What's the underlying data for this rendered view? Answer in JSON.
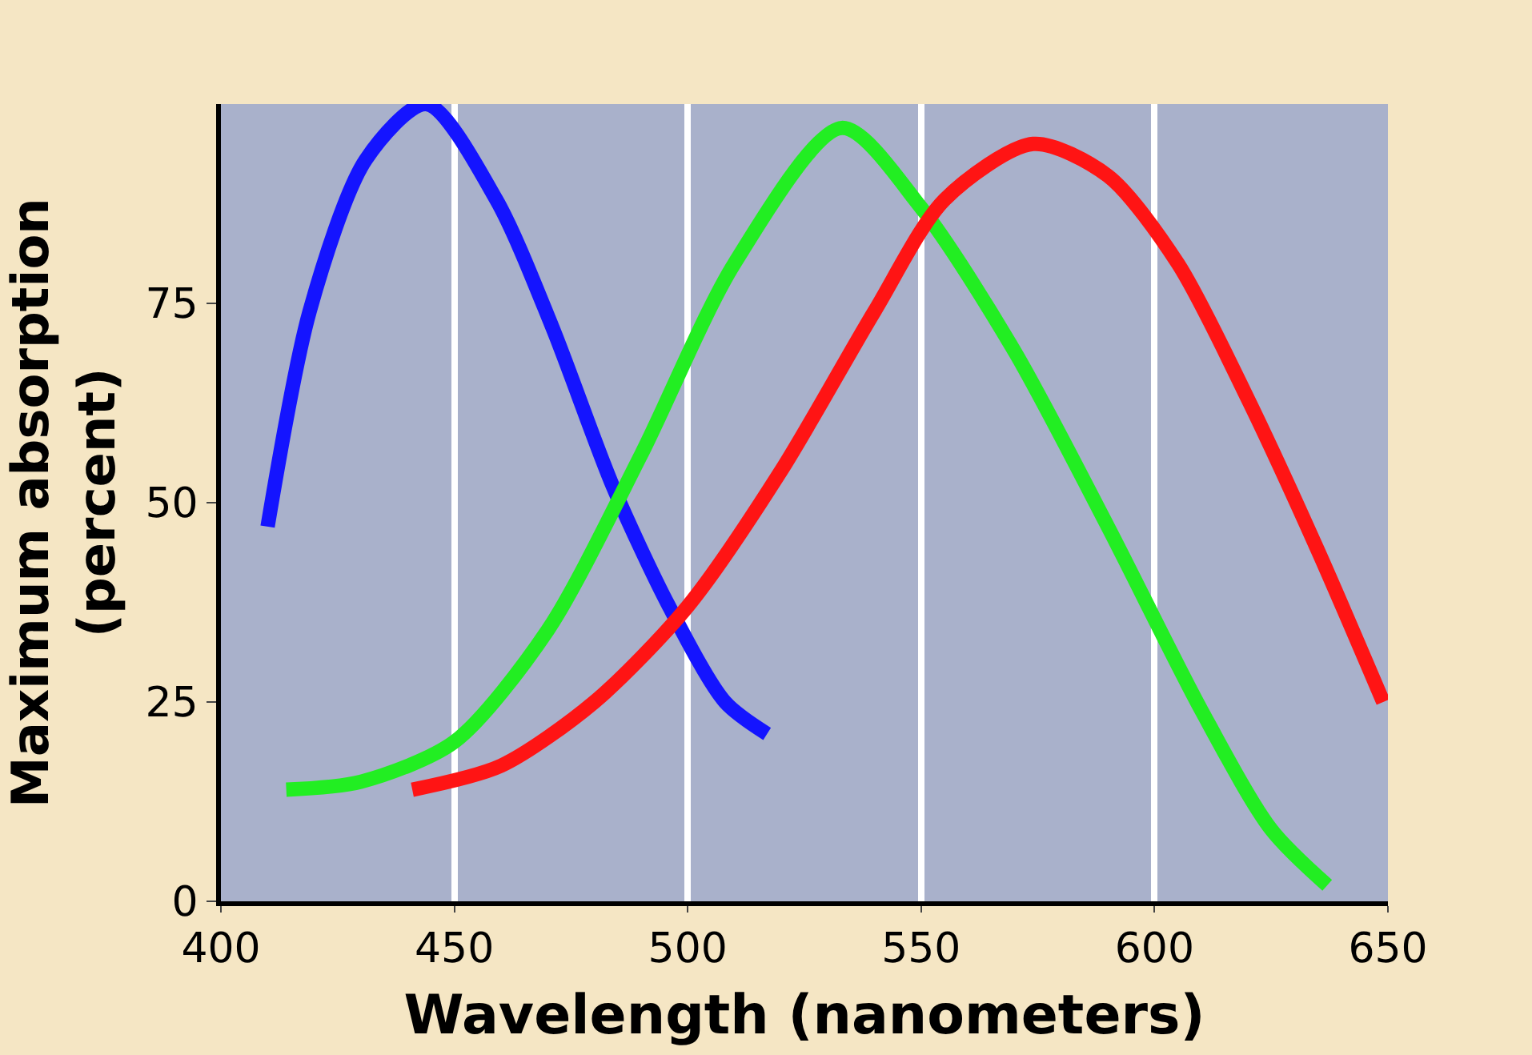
{
  "chart_data": {
    "type": "line",
    "xlabel": "Wavelength (nanometers)",
    "ylabel": "Maximum absorption\n(percent)",
    "xlim": [
      400,
      650
    ],
    "ylim": [
      0,
      100
    ],
    "xticks": [
      400,
      450,
      500,
      550,
      600,
      650
    ],
    "yticks": [
      0,
      25,
      50,
      75
    ],
    "grid": "x",
    "marker": "none",
    "line_style": "solid",
    "series": [
      {
        "color": "#1414ff",
        "x": [
          410,
          419,
          431,
          444,
          459,
          471,
          484,
          496,
          508,
          517
        ],
        "values": [
          47,
          74,
          93,
          100,
          88,
          72,
          52,
          37,
          25,
          21
        ]
      },
      {
        "color": "#22ee22",
        "x": [
          414,
          430,
          450,
          470,
          490,
          510,
          533,
          550,
          570,
          590,
          610,
          625,
          637
        ],
        "values": [
          14,
          15,
          20,
          34,
          56,
          80,
          97,
          87,
          69,
          47,
          24,
          9,
          2
        ]
      },
      {
        "color": "#ff1414",
        "x": [
          441,
          460,
          480,
          500,
          520,
          540,
          555,
          574,
          590,
          605,
          620,
          635,
          649
        ],
        "values": [
          14,
          17,
          25,
          37,
          54,
          74,
          88,
          95,
          91,
          80,
          63,
          44,
          25
        ]
      }
    ]
  }
}
